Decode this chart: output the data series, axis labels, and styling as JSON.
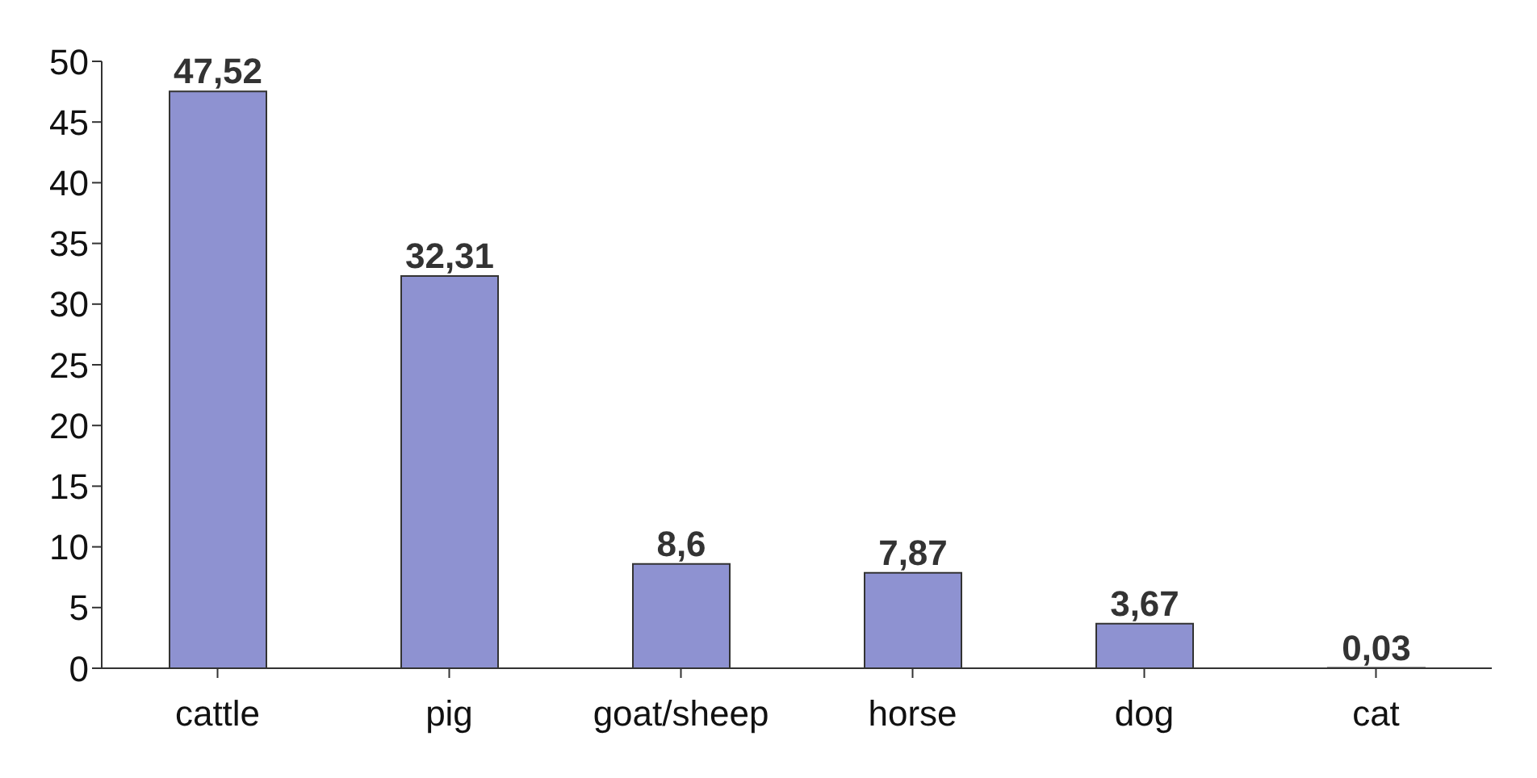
{
  "chart_data": {
    "type": "bar",
    "categories": [
      "cattle",
      "pig",
      "goat/sheep",
      "horse",
      "dog",
      "cat"
    ],
    "values": [
      47.52,
      32.31,
      8.6,
      7.87,
      3.67,
      0.03
    ],
    "value_labels": [
      "47,52",
      "32,31",
      "8,6",
      "7,87",
      "3,67",
      "0,03"
    ],
    "color": "#8e92d1",
    "ylim": [
      0,
      50
    ],
    "yticks": [
      0,
      5,
      10,
      15,
      20,
      25,
      30,
      35,
      40,
      45,
      50
    ],
    "grid": false
  }
}
